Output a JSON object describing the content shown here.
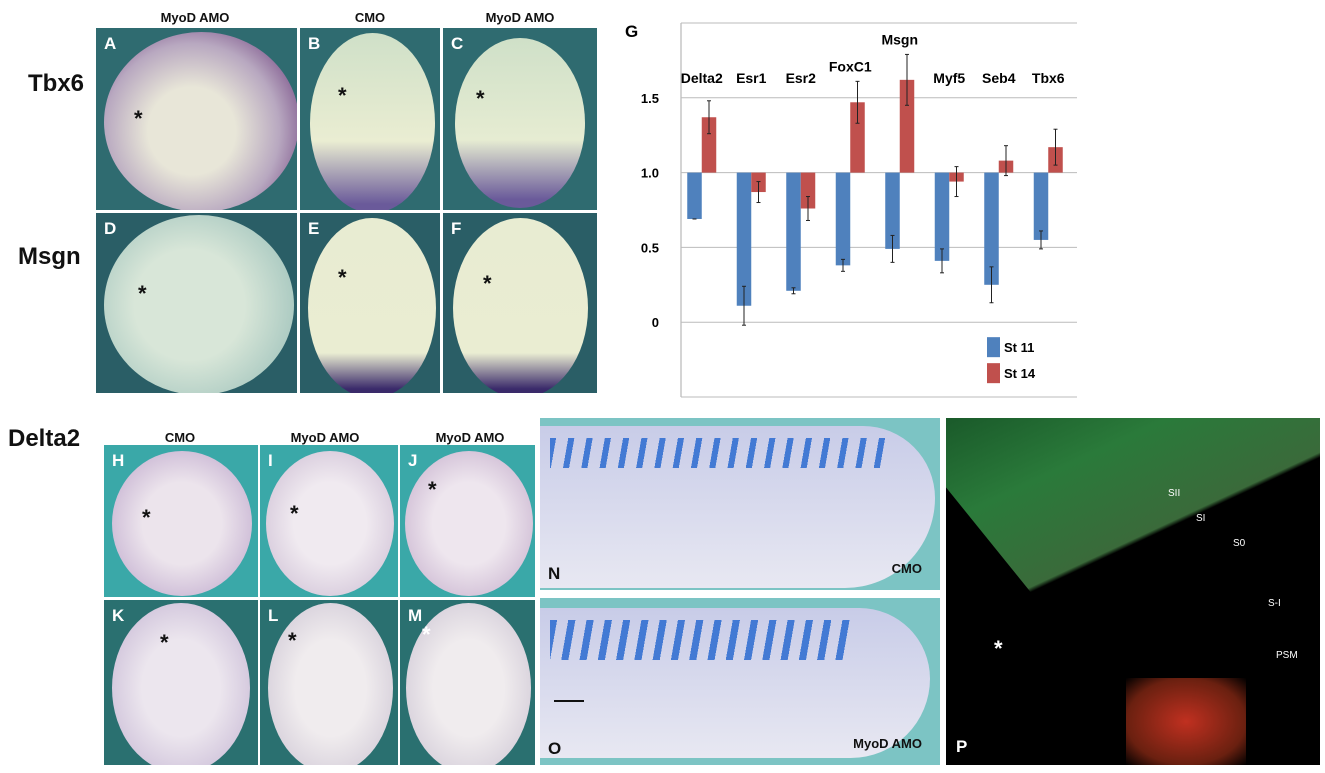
{
  "column_headers_top": [
    "MyoD AMO",
    "CMO",
    "MyoD AMO"
  ],
  "column_headers_delta2": [
    "CMO",
    "MyoD  AMO",
    "MyoD  AMO"
  ],
  "row_labels": {
    "tbx6": "Tbx6",
    "msgn": "Msgn",
    "delta2": "Delta2"
  },
  "panels": {
    "A": "A",
    "B": "B",
    "C": "C",
    "D": "D",
    "E": "E",
    "F": "F",
    "G": "G",
    "H": "H",
    "I": "I",
    "J": "J",
    "K": "K",
    "L": "L",
    "M": "M",
    "N": "N",
    "O": "O",
    "P": "P"
  },
  "asterisk": "*",
  "panel_tags": {
    "N": "CMO",
    "O": "MyoD  AMO"
  },
  "p_labels": {
    "sii": "SII",
    "si": "SI",
    "s0": "S0",
    "smi": "S-I",
    "psm": "PSM"
  },
  "chart_data": {
    "type": "bar",
    "categories": [
      "Delta2",
      "Esr1",
      "Esr2",
      "FoxC1",
      "Msgn",
      "Myf5",
      "Seb4",
      "Tbx6"
    ],
    "baseline": 1.0,
    "series": [
      {
        "name": "St 11",
        "color": "#4f81bd",
        "values": [
          0.69,
          0.11,
          0.21,
          0.38,
          0.49,
          0.41,
          0.25,
          0.55
        ],
        "errors": [
          0.0,
          0.13,
          0.02,
          0.04,
          0.09,
          0.08,
          0.12,
          0.06
        ]
      },
      {
        "name": "St 14",
        "color": "#c0504d",
        "values": [
          1.37,
          0.87,
          0.76,
          1.47,
          1.62,
          0.94,
          1.08,
          1.17
        ],
        "errors": [
          0.11,
          0.07,
          0.08,
          0.14,
          0.17,
          0.1,
          0.1,
          0.12
        ]
      }
    ],
    "yticks": [
      "0",
      "0.5",
      "1.0",
      "1.5"
    ],
    "ylim": [
      -0.5,
      2.0
    ],
    "grid": true,
    "legend": "bottom-right"
  }
}
